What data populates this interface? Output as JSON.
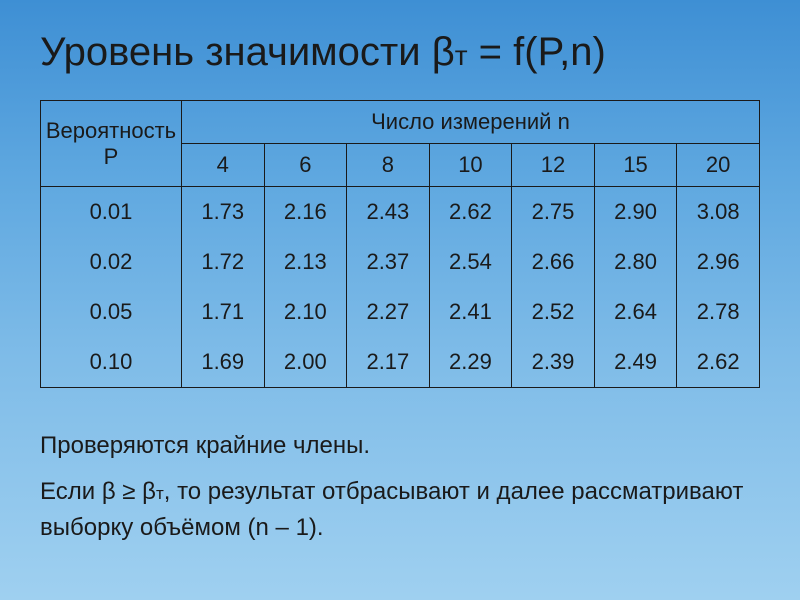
{
  "title_prefix": "Уровень значимости β",
  "title_sub": "т",
  "title_suffix": " = f(P,n)",
  "table": {
    "prob_header": "Вероятность P",
    "n_header": "Число измерений n",
    "columns": [
      "4",
      "6",
      "8",
      "10",
      "12",
      "15",
      "20"
    ],
    "rows": [
      {
        "p": "0.01",
        "v": [
          "1.73",
          "2.16",
          "2.43",
          "2.62",
          "2.75",
          "2.90",
          "3.08"
        ]
      },
      {
        "p": "0.02",
        "v": [
          "1.72",
          "2.13",
          "2.37",
          "2.54",
          "2.66",
          "2.80",
          "2.96"
        ]
      },
      {
        "p": "0.05",
        "v": [
          "1.71",
          "2.10",
          "2.27",
          "2.41",
          "2.52",
          "2.64",
          "2.78"
        ]
      },
      {
        "p": "0.10",
        "v": [
          "1.69",
          "2.00",
          "2.17",
          "2.29",
          "2.39",
          "2.49",
          "2.62"
        ]
      }
    ]
  },
  "para1": "Проверяются крайние члены.",
  "para2_prefix": "Если β ≥ β",
  "para2_sub": "т",
  "para2_suffix": ", то результат отбрасывают и далее рассматривают выборку объёмом (n – 1).",
  "styles": {
    "background_gradient_start": "#3e8fd4",
    "background_gradient_end": "#9fd0f0",
    "text_color": "#1a1a1a",
    "border_color": "#1a1a1a",
    "title_fontsize": 40,
    "body_fontsize": 24,
    "table_fontsize": 22
  }
}
